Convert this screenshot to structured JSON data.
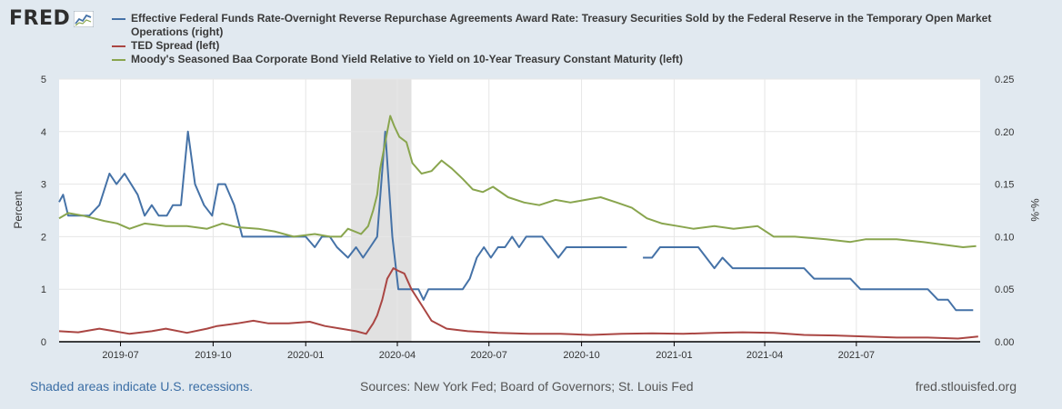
{
  "header": {
    "logo_text": "FRED",
    "logo_icon": "sparkline-chart-icon"
  },
  "colors": {
    "series1": "#4572a7",
    "series2": "#aa4643",
    "series3": "#89a54e",
    "recession": "#e1e1e1"
  },
  "footer": {
    "left": "Shaded areas indicate U.S. recessions.",
    "middle": "Sources: New York Fed; Board of Governors; St. Louis Fed",
    "right": "fred.stlouisfed.org"
  },
  "chart_data": {
    "type": "line",
    "title": "",
    "ylabel_left": "Percent",
    "ylabel_right": "%-%",
    "ylim_left": [
      0,
      5
    ],
    "ylim_right": [
      0,
      0.25
    ],
    "yticks_left": [
      "0",
      "1",
      "2",
      "3",
      "4",
      "5"
    ],
    "yticks_right": [
      "0.00",
      "0.05",
      "0.10",
      "0.15",
      "0.20",
      "0.25"
    ],
    "x_range": [
      "2019-05-01",
      "2021-11-01"
    ],
    "xticks": [
      {
        "label": "2019-07",
        "date": "2019-07-01"
      },
      {
        "label": "2019-10",
        "date": "2019-10-01"
      },
      {
        "label": "2020-01",
        "date": "2020-01-01"
      },
      {
        "label": "2020-04",
        "date": "2020-04-01"
      },
      {
        "label": "2020-07",
        "date": "2020-07-01"
      },
      {
        "label": "2020-10",
        "date": "2020-10-01"
      },
      {
        "label": "2021-01",
        "date": "2021-01-01"
      },
      {
        "label": "2021-04",
        "date": "2021-04-01"
      },
      {
        "label": "2021-07",
        "date": "2021-07-01"
      }
    ],
    "recessions": [
      [
        "2020-02-15",
        "2020-04-15"
      ]
    ],
    "grid": true,
    "series": [
      {
        "name": "Effective Federal Funds Rate-Overnight Reverse Repurchase Agreements Award Rate: Treasury Securities Sold by the Federal Reserve in the Temporary Open Market Operations (right)",
        "axis": "right",
        "color": "#4572a7",
        "points": [
          [
            "2019-05-01",
            0.133
          ],
          [
            "2019-05-05",
            0.14
          ],
          [
            "2019-05-10",
            0.12
          ],
          [
            "2019-05-20",
            0.12
          ],
          [
            "2019-05-31",
            0.12
          ],
          [
            "2019-06-10",
            0.13
          ],
          [
            "2019-06-20",
            0.16
          ],
          [
            "2019-06-27",
            0.15
          ],
          [
            "2019-07-05",
            0.16
          ],
          [
            "2019-07-18",
            0.14
          ],
          [
            "2019-07-25",
            0.12
          ],
          [
            "2019-08-01",
            0.13
          ],
          [
            "2019-08-08",
            0.12
          ],
          [
            "2019-08-16",
            0.12
          ],
          [
            "2019-08-22",
            0.13
          ],
          [
            "2019-08-30",
            0.13
          ],
          [
            "2019-09-06",
            0.2
          ],
          [
            "2019-09-13",
            0.15
          ],
          [
            "2019-09-22",
            0.13
          ],
          [
            "2019-09-30",
            0.12
          ],
          [
            "2019-10-06",
            0.15
          ],
          [
            "2019-10-13",
            0.15
          ],
          [
            "2019-10-22",
            0.13
          ],
          [
            "2019-10-30",
            0.1
          ],
          [
            "2019-12-01",
            0.1
          ],
          [
            "2019-12-22",
            0.1
          ],
          [
            "2020-01-01",
            0.1
          ],
          [
            "2020-01-10",
            0.09
          ],
          [
            "2020-01-17",
            0.1
          ],
          [
            "2020-01-25",
            0.1
          ],
          [
            "2020-02-01",
            0.09
          ],
          [
            "2020-02-12",
            0.08
          ],
          [
            "2020-02-20",
            0.09
          ],
          [
            "2020-02-27",
            0.08
          ],
          [
            "2020-03-05",
            0.09
          ],
          [
            "2020-03-12",
            0.1
          ],
          [
            "2020-03-20",
            0.2
          ],
          [
            "2020-03-27",
            0.1
          ],
          [
            "2020-04-02",
            0.05
          ],
          [
            "2020-04-12",
            0.05
          ],
          [
            "2020-04-22",
            0.05
          ],
          [
            "2020-04-27",
            0.04
          ],
          [
            "2020-05-02",
            0.05
          ],
          [
            "2020-05-12",
            0.05
          ],
          [
            "2020-06-05",
            0.05
          ],
          [
            "2020-06-12",
            0.06
          ],
          [
            "2020-06-19",
            0.08
          ],
          [
            "2020-06-26",
            0.09
          ],
          [
            "2020-07-03",
            0.08
          ],
          [
            "2020-07-10",
            0.09
          ],
          [
            "2020-07-17",
            0.09
          ],
          [
            "2020-07-24",
            0.1
          ],
          [
            "2020-07-31",
            0.09
          ],
          [
            "2020-08-07",
            0.1
          ],
          [
            "2020-08-23",
            0.1
          ],
          [
            "2020-09-08",
            0.08
          ],
          [
            "2020-09-16",
            0.09
          ],
          [
            "2020-11-15",
            0.09
          ],
          null,
          [
            "2020-12-01",
            0.08
          ],
          [
            "2020-12-10",
            0.08
          ],
          [
            "2020-12-18",
            0.09
          ],
          [
            "2021-01-25",
            0.09
          ],
          [
            "2021-02-10",
            0.07
          ],
          [
            "2021-02-18",
            0.08
          ],
          [
            "2021-02-28",
            0.07
          ],
          [
            "2021-05-10",
            0.07
          ],
          [
            "2021-05-20",
            0.06
          ],
          [
            "2021-06-25",
            0.06
          ],
          [
            "2021-07-05",
            0.05
          ],
          [
            "2021-09-10",
            0.05
          ],
          [
            "2021-09-20",
            0.04
          ],
          [
            "2021-09-30",
            0.04
          ],
          [
            "2021-10-08",
            0.03
          ],
          [
            "2021-10-25",
            0.03
          ]
        ]
      },
      {
        "name": "TED Spread (left)",
        "axis": "left",
        "color": "#aa4643",
        "points": [
          [
            "2019-05-01",
            0.2
          ],
          [
            "2019-05-20",
            0.18
          ],
          [
            "2019-06-10",
            0.25
          ],
          [
            "2019-06-25",
            0.2
          ],
          [
            "2019-07-10",
            0.15
          ],
          [
            "2019-08-01",
            0.2
          ],
          [
            "2019-08-15",
            0.25
          ],
          [
            "2019-09-05",
            0.17
          ],
          [
            "2019-09-25",
            0.25
          ],
          [
            "2019-10-05",
            0.3
          ],
          [
            "2019-10-25",
            0.35
          ],
          [
            "2019-11-10",
            0.4
          ],
          [
            "2019-11-25",
            0.35
          ],
          [
            "2019-12-15",
            0.35
          ],
          [
            "2020-01-05",
            0.38
          ],
          [
            "2020-01-20",
            0.3
          ],
          [
            "2020-02-05",
            0.25
          ],
          [
            "2020-02-20",
            0.2
          ],
          [
            "2020-03-01",
            0.15
          ],
          [
            "2020-03-08",
            0.35
          ],
          [
            "2020-03-12",
            0.5
          ],
          [
            "2020-03-17",
            0.8
          ],
          [
            "2020-03-22",
            1.2
          ],
          [
            "2020-03-28",
            1.4
          ],
          [
            "2020-04-02",
            1.35
          ],
          [
            "2020-04-08",
            1.3
          ],
          [
            "2020-04-15",
            1.0
          ],
          [
            "2020-04-25",
            0.7
          ],
          [
            "2020-05-05",
            0.4
          ],
          [
            "2020-05-20",
            0.25
          ],
          [
            "2020-06-10",
            0.2
          ],
          [
            "2020-07-10",
            0.17
          ],
          [
            "2020-08-10",
            0.15
          ],
          [
            "2020-09-10",
            0.15
          ],
          [
            "2020-10-10",
            0.13
          ],
          [
            "2020-11-10",
            0.15
          ],
          [
            "2020-12-10",
            0.16
          ],
          [
            "2021-01-10",
            0.15
          ],
          [
            "2021-02-10",
            0.17
          ],
          [
            "2021-03-10",
            0.18
          ],
          [
            "2021-04-10",
            0.17
          ],
          [
            "2021-05-10",
            0.13
          ],
          [
            "2021-06-10",
            0.12
          ],
          [
            "2021-07-10",
            0.1
          ],
          [
            "2021-08-10",
            0.08
          ],
          [
            "2021-09-10",
            0.08
          ],
          [
            "2021-10-10",
            0.06
          ],
          [
            "2021-10-30",
            0.1
          ]
        ]
      },
      {
        "name": "Moody's Seasoned Baa Corporate Bond Yield Relative to Yield on 10-Year Treasury Constant Maturity (left)",
        "axis": "left",
        "color": "#89a54e",
        "points": [
          [
            "2019-05-01",
            2.35
          ],
          [
            "2019-05-10",
            2.45
          ],
          [
            "2019-05-25",
            2.4
          ],
          [
            "2019-06-15",
            2.3
          ],
          [
            "2019-06-28",
            2.25
          ],
          [
            "2019-07-10",
            2.15
          ],
          [
            "2019-07-25",
            2.25
          ],
          [
            "2019-08-15",
            2.2
          ],
          [
            "2019-09-05",
            2.2
          ],
          [
            "2019-09-25",
            2.15
          ],
          [
            "2019-10-10",
            2.25
          ],
          [
            "2019-10-25",
            2.18
          ],
          [
            "2019-11-15",
            2.15
          ],
          [
            "2019-12-01",
            2.1
          ],
          [
            "2019-12-20",
            2.0
          ],
          [
            "2020-01-10",
            2.05
          ],
          [
            "2020-01-25",
            2.0
          ],
          [
            "2020-02-05",
            2.0
          ],
          [
            "2020-02-12",
            2.15
          ],
          [
            "2020-02-25",
            2.05
          ],
          [
            "2020-03-03",
            2.2
          ],
          [
            "2020-03-08",
            2.5
          ],
          [
            "2020-03-12",
            2.8
          ],
          [
            "2020-03-15",
            3.3
          ],
          [
            "2020-03-18",
            3.6
          ],
          [
            "2020-03-22",
            4.0
          ],
          [
            "2020-03-25",
            4.3
          ],
          [
            "2020-03-29",
            4.1
          ],
          [
            "2020-04-03",
            3.9
          ],
          [
            "2020-04-10",
            3.8
          ],
          [
            "2020-04-16",
            3.4
          ],
          [
            "2020-04-25",
            3.2
          ],
          [
            "2020-05-05",
            3.25
          ],
          [
            "2020-05-15",
            3.45
          ],
          [
            "2020-05-25",
            3.3
          ],
          [
            "2020-06-05",
            3.1
          ],
          [
            "2020-06-15",
            2.9
          ],
          [
            "2020-06-25",
            2.85
          ],
          [
            "2020-07-05",
            2.95
          ],
          [
            "2020-07-20",
            2.75
          ],
          [
            "2020-08-05",
            2.65
          ],
          [
            "2020-08-20",
            2.6
          ],
          [
            "2020-09-05",
            2.7
          ],
          [
            "2020-09-20",
            2.65
          ],
          [
            "2020-10-05",
            2.7
          ],
          [
            "2020-10-20",
            2.75
          ],
          [
            "2020-11-05",
            2.65
          ],
          [
            "2020-11-20",
            2.55
          ],
          [
            "2020-12-05",
            2.35
          ],
          [
            "2020-12-20",
            2.25
          ],
          [
            "2021-01-05",
            2.2
          ],
          [
            "2021-01-20",
            2.15
          ],
          [
            "2021-02-10",
            2.2
          ],
          [
            "2021-03-01",
            2.15
          ],
          [
            "2021-03-25",
            2.2
          ],
          [
            "2021-04-10",
            2.0
          ],
          [
            "2021-05-01",
            2.0
          ],
          [
            "2021-06-01",
            1.95
          ],
          [
            "2021-06-25",
            1.9
          ],
          [
            "2021-07-10",
            1.95
          ],
          [
            "2021-08-10",
            1.95
          ],
          [
            "2021-09-05",
            1.9
          ],
          [
            "2021-09-25",
            1.85
          ],
          [
            "2021-10-15",
            1.8
          ],
          [
            "2021-10-28",
            1.82
          ]
        ]
      }
    ]
  }
}
